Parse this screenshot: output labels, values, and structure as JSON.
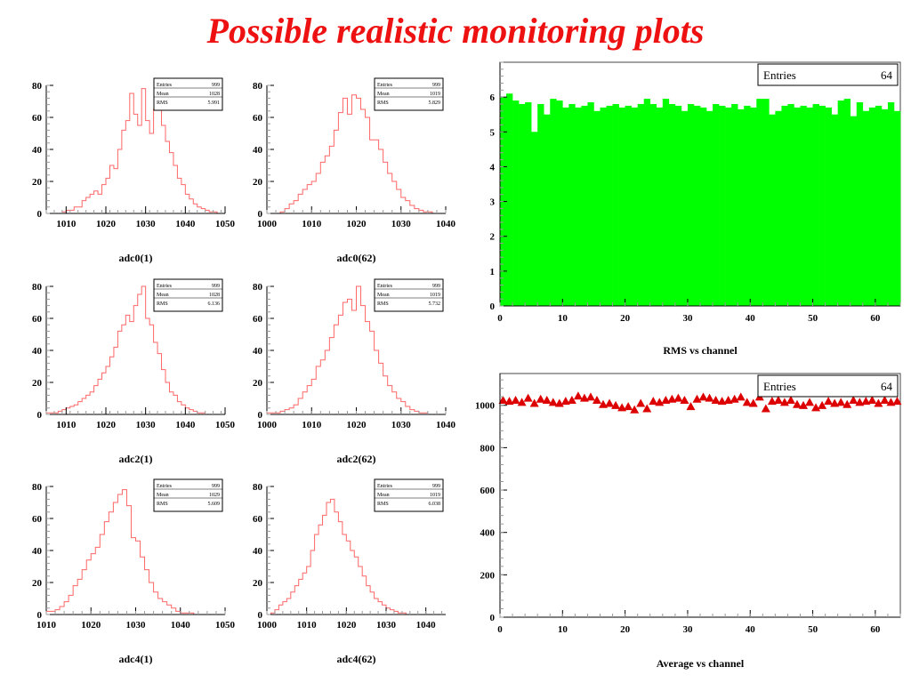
{
  "page": {
    "title": "Possible realistic monitoring plots"
  },
  "colors": {
    "title": "#ee1111",
    "histogram_line": "#ff6666",
    "rms_fill": "#00ff00",
    "average_marker": "#dd0000"
  },
  "chart_data": [
    {
      "id": "adc0-1",
      "type": "bar",
      "title": "",
      "xlabel": "adc0(1)",
      "ylabel": "",
      "xlim": [
        1005,
        1050
      ],
      "ylim": [
        0,
        80
      ],
      "xticks": [
        1010,
        1020,
        1030,
        1040,
        1050
      ],
      "yticks": [
        0,
        20,
        40,
        60,
        80
      ],
      "bin_start": 1005,
      "bin_width": 1,
      "values": [
        0,
        0,
        0,
        0,
        1,
        2,
        2,
        4,
        4,
        8,
        10,
        12,
        14,
        12,
        18,
        22,
        30,
        28,
        40,
        52,
        58,
        75,
        62,
        55,
        78,
        58,
        50,
        65,
        73,
        55,
        45,
        38,
        30,
        22,
        18,
        12,
        9,
        6,
        4,
        3,
        2,
        1,
        1,
        0,
        0
      ],
      "stats": [
        {
          "label": "Entries",
          "value": "999"
        },
        {
          "label": "Mean",
          "value": "1028"
        },
        {
          "label": "RMS",
          "value": "5.991"
        }
      ]
    },
    {
      "id": "adc0-62",
      "type": "bar",
      "title": "",
      "xlabel": "adc0(62)",
      "ylabel": "",
      "xlim": [
        1000,
        1040
      ],
      "ylim": [
        0,
        80
      ],
      "xticks": [
        1000,
        1010,
        1020,
        1030,
        1040
      ],
      "yticks": [
        0,
        20,
        40,
        60,
        80
      ],
      "bin_start": 1000,
      "bin_width": 1,
      "values": [
        0,
        0,
        0,
        1,
        3,
        6,
        8,
        12,
        15,
        18,
        20,
        25,
        32,
        36,
        42,
        52,
        63,
        72,
        62,
        74,
        72,
        65,
        60,
        46,
        46,
        40,
        32,
        25,
        20,
        15,
        10,
        8,
        5,
        3,
        2,
        1,
        1,
        0,
        0,
        0
      ],
      "stats": [
        {
          "label": "Entries",
          "value": "999"
        },
        {
          "label": "Mean",
          "value": "1019"
        },
        {
          "label": "RMS",
          "value": "5.829"
        }
      ]
    },
    {
      "id": "adc2-1",
      "type": "bar",
      "title": "",
      "xlabel": "adc2(1)",
      "ylabel": "",
      "xlim": [
        1005,
        1050
      ],
      "ylim": [
        0,
        80
      ],
      "xticks": [
        1010,
        1020,
        1030,
        1040,
        1050
      ],
      "yticks": [
        0,
        20,
        40,
        60,
        80
      ],
      "bin_start": 1005,
      "bin_width": 1,
      "values": [
        1,
        1,
        1,
        2,
        3,
        4,
        5,
        6,
        8,
        10,
        12,
        14,
        18,
        22,
        26,
        30,
        36,
        42,
        52,
        56,
        62,
        58,
        68,
        75,
        80,
        60,
        56,
        45,
        38,
        28,
        20,
        14,
        12,
        8,
        6,
        4,
        3,
        2,
        1,
        1,
        0,
        0,
        0,
        0,
        0
      ],
      "stats": [
        {
          "label": "Entries",
          "value": "999"
        },
        {
          "label": "Mean",
          "value": "1028"
        },
        {
          "label": "RMS",
          "value": "6.136"
        }
      ]
    },
    {
      "id": "adc2-62",
      "type": "bar",
      "title": "",
      "xlabel": "adc2(62)",
      "ylabel": "",
      "xlim": [
        1000,
        1040
      ],
      "ylim": [
        0,
        80
      ],
      "xticks": [
        1000,
        1010,
        1020,
        1030,
        1040
      ],
      "yticks": [
        0,
        20,
        40,
        60,
        80
      ],
      "bin_start": 1000,
      "bin_width": 1,
      "values": [
        1,
        1,
        1,
        2,
        3,
        4,
        6,
        10,
        14,
        18,
        22,
        30,
        34,
        40,
        48,
        56,
        62,
        70,
        72,
        65,
        80,
        68,
        58,
        52,
        40,
        32,
        24,
        18,
        14,
        10,
        8,
        5,
        3,
        2,
        1,
        1,
        0,
        0,
        0,
        0
      ],
      "stats": [
        {
          "label": "Entries",
          "value": "999"
        },
        {
          "label": "Mean",
          "value": "1019"
        },
        {
          "label": "RMS",
          "value": "5.732"
        }
      ]
    },
    {
      "id": "adc4-1",
      "type": "bar",
      "title": "",
      "xlabel": "adc4(1)",
      "ylabel": "",
      "xlim": [
        1010,
        1050
      ],
      "ylim": [
        0,
        80
      ],
      "xticks": [
        1010,
        1020,
        1030,
        1040,
        1050
      ],
      "yticks": [
        0,
        20,
        40,
        60,
        80
      ],
      "bin_start": 1010,
      "bin_width": 1,
      "values": [
        2,
        2,
        3,
        5,
        8,
        12,
        18,
        22,
        28,
        34,
        38,
        42,
        50,
        58,
        64,
        70,
        75,
        78,
        68,
        48,
        46,
        36,
        28,
        20,
        14,
        10,
        8,
        6,
        4,
        2,
        1,
        1,
        1,
        0,
        0,
        0,
        0,
        0,
        0,
        0
      ],
      "stats": [
        {
          "label": "Entries",
          "value": "999"
        },
        {
          "label": "Mean",
          "value": "1029"
        },
        {
          "label": "RMS",
          "value": "5.609"
        }
      ]
    },
    {
      "id": "adc4-62",
      "type": "bar",
      "title": "",
      "xlabel": "adc4(62)",
      "ylabel": "",
      "xlim": [
        1000,
        1045
      ],
      "ylim": [
        0,
        80
      ],
      "xticks": [
        1000,
        1010,
        1020,
        1030,
        1040
      ],
      "yticks": [
        0,
        20,
        40,
        60,
        80
      ],
      "bin_start": 1000,
      "bin_width": 1,
      "values": [
        0,
        1,
        3,
        6,
        8,
        10,
        14,
        18,
        22,
        26,
        30,
        40,
        50,
        56,
        62,
        70,
        72,
        64,
        58,
        50,
        46,
        40,
        36,
        30,
        24,
        18,
        14,
        10,
        8,
        6,
        4,
        3,
        2,
        1,
        1,
        0,
        0,
        0,
        0,
        0,
        0,
        0,
        0,
        0,
        0
      ],
      "stats": [
        {
          "label": "Entries",
          "value": "999"
        },
        {
          "label": "Mean",
          "value": "1019"
        },
        {
          "label": "RMS",
          "value": "6.038"
        }
      ]
    },
    {
      "id": "rms-vs-channel",
      "type": "bar",
      "title": "",
      "xlabel": "RMS vs channel",
      "ylabel": "",
      "xlim": [
        0,
        64
      ],
      "ylim": [
        0,
        7
      ],
      "xticks": [
        0,
        10,
        20,
        30,
        40,
        50,
        60
      ],
      "yticks": [
        0,
        1,
        2,
        3,
        4,
        5,
        6
      ],
      "bin_start": 0,
      "bin_width": 1,
      "values": [
        6.0,
        6.1,
        5.9,
        5.8,
        5.85,
        5.0,
        5.8,
        5.5,
        5.95,
        5.9,
        5.7,
        5.8,
        5.7,
        5.75,
        5.85,
        5.6,
        5.7,
        5.75,
        5.8,
        5.7,
        5.75,
        5.7,
        5.8,
        5.95,
        5.8,
        5.7,
        5.95,
        5.8,
        5.75,
        5.6,
        5.8,
        5.75,
        5.7,
        5.6,
        5.8,
        5.75,
        5.7,
        5.8,
        5.65,
        5.75,
        5.7,
        5.95,
        5.95,
        5.5,
        5.6,
        5.75,
        5.8,
        5.7,
        5.75,
        5.7,
        5.8,
        5.75,
        5.7,
        5.5,
        5.9,
        5.95,
        5.45,
        5.85,
        5.6,
        5.7,
        5.75,
        5.65,
        5.85,
        5.6
      ],
      "stats": [
        {
          "label": "Entries",
          "value": "64"
        }
      ]
    },
    {
      "id": "average-vs-channel",
      "type": "scatter",
      "title": "",
      "xlabel": "Average vs channel",
      "ylabel": "",
      "xlim": [
        0,
        64
      ],
      "ylim": [
        0,
        1150
      ],
      "xticks": [
        0,
        10,
        20,
        30,
        40,
        50,
        60
      ],
      "yticks": [
        0,
        200,
        400,
        600,
        800,
        1000
      ],
      "x": [
        0.5,
        1.5,
        2.5,
        3.5,
        4.5,
        5.5,
        6.5,
        7.5,
        8.5,
        9.5,
        10.5,
        11.5,
        12.5,
        13.5,
        14.5,
        15.5,
        16.5,
        17.5,
        18.5,
        19.5,
        20.5,
        21.5,
        22.5,
        23.5,
        24.5,
        25.5,
        26.5,
        27.5,
        28.5,
        29.5,
        30.5,
        31.5,
        32.5,
        33.5,
        34.5,
        35.5,
        36.5,
        37.5,
        38.5,
        39.5,
        40.5,
        41.5,
        42.5,
        43.5,
        44.5,
        45.5,
        46.5,
        47.5,
        48.5,
        49.5,
        50.5,
        51.5,
        52.5,
        53.5,
        54.5,
        55.5,
        56.5,
        57.5,
        58.5,
        59.5,
        60.5,
        61.5,
        62.5,
        63.5
      ],
      "y": [
        1020,
        1015,
        1020,
        1010,
        1030,
        1005,
        1025,
        1020,
        1010,
        1005,
        1015,
        1020,
        1040,
        1030,
        1035,
        1020,
        1000,
        1005,
        995,
        985,
        990,
        975,
        1005,
        980,
        1015,
        1010,
        1020,
        1025,
        1030,
        1020,
        990,
        1025,
        1035,
        1030,
        1020,
        1015,
        1020,
        1025,
        1035,
        1010,
        1005,
        1035,
        980,
        1015,
        1020,
        1010,
        1020,
        1000,
        995,
        1010,
        985,
        995,
        1015,
        1005,
        1010,
        1000,
        1020,
        1010,
        1015,
        1020,
        1005,
        1020,
        1010,
        1015
      ],
      "stats": [
        {
          "label": "Entries",
          "value": "64"
        }
      ]
    }
  ]
}
